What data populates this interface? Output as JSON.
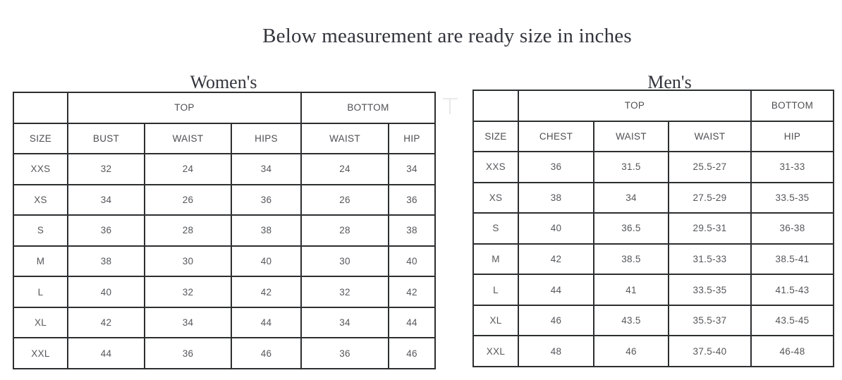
{
  "page_title": "Below measurement are ready size in inches",
  "colors": {
    "table_border": "#2d2e30",
    "cell_text": "#56575b",
    "heading_text": "#33343c",
    "background": "#ffffff"
  },
  "women": {
    "heading": "Women's",
    "group_headers": [
      {
        "label": "",
        "span": 1
      },
      {
        "label": "TOP",
        "span": 3
      },
      {
        "label": "BOTTOM",
        "span": 2
      }
    ],
    "columns": [
      "SIZE",
      "BUST",
      "WAIST",
      "HIPS",
      "WAIST",
      "HIP"
    ],
    "rows": [
      [
        "XXS",
        "32",
        "24",
        "34",
        "24",
        "34"
      ],
      [
        "XS",
        "34",
        "26",
        "36",
        "26",
        "36"
      ],
      [
        "S",
        "36",
        "28",
        "38",
        "28",
        "38"
      ],
      [
        "M",
        "38",
        "30",
        "40",
        "30",
        "40"
      ],
      [
        "L",
        "40",
        "32",
        "42",
        "32",
        "42"
      ],
      [
        "XL",
        "42",
        "34",
        "44",
        "34",
        "44"
      ],
      [
        "XXL",
        "44",
        "36",
        "46",
        "36",
        "46"
      ]
    ]
  },
  "men": {
    "heading": "Men's",
    "group_headers": [
      {
        "label": "",
        "span": 1
      },
      {
        "label": "TOP",
        "span": 3
      },
      {
        "label": "BOTTOM",
        "span": 1
      }
    ],
    "columns": [
      "SIZE",
      "CHEST",
      "WAIST",
      "WAIST",
      "HIP"
    ],
    "rows": [
      [
        "XXS",
        "36",
        "31.5",
        "25.5-27",
        "31-33"
      ],
      [
        "XS",
        "38",
        "34",
        "27.5-29",
        "33.5-35"
      ],
      [
        "S",
        "40",
        "36.5",
        "29.5-31",
        "36-38"
      ],
      [
        "M",
        "42",
        "38.5",
        "31.5-33",
        "38.5-41"
      ],
      [
        "L",
        "44",
        "41",
        "33.5-35",
        "41.5-43"
      ],
      [
        "XL",
        "46",
        "43.5",
        "35.5-37",
        "43.5-45"
      ],
      [
        "XXL",
        "48",
        "46",
        "37.5-40",
        "46-48"
      ]
    ]
  }
}
